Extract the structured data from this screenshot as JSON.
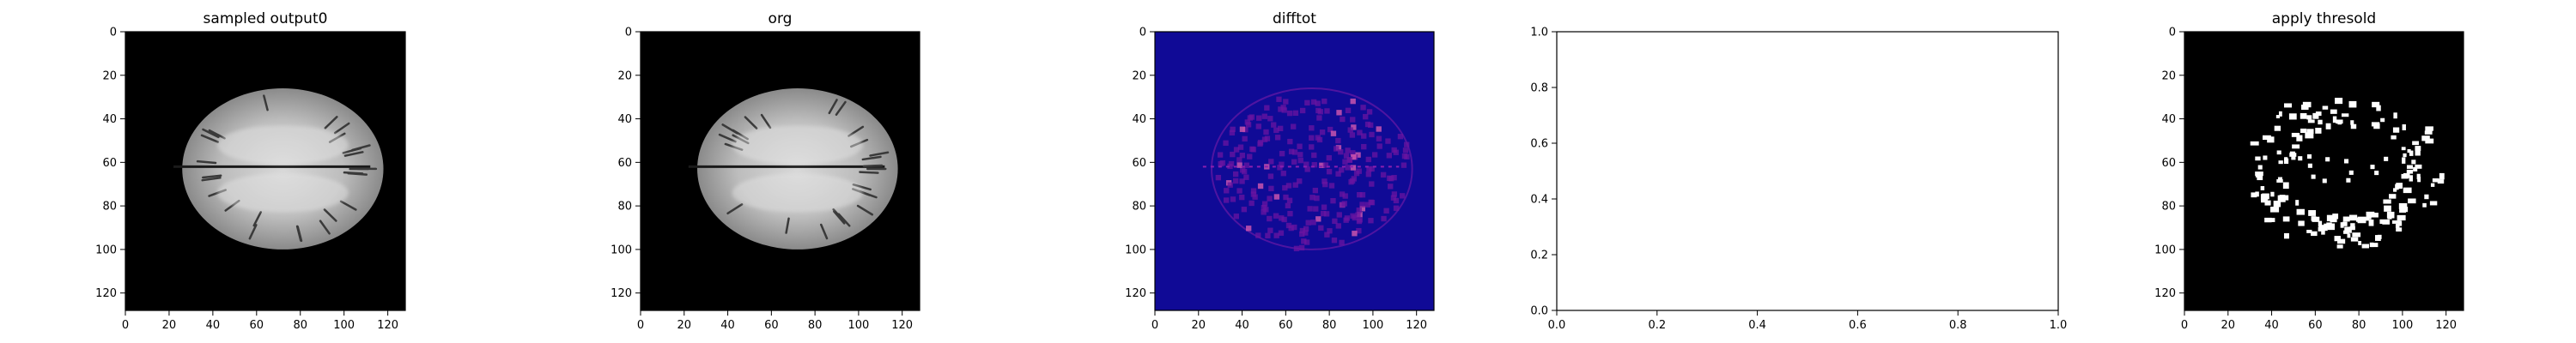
{
  "chart_data": [
    {
      "type": "heatmap",
      "title": "sampled output0",
      "colormap": "gray",
      "image": "brain-mri-axial-slice",
      "xlim": [
        0,
        128
      ],
      "ylim": [
        128,
        0
      ],
      "xticks": [
        0,
        20,
        40,
        60,
        80,
        100,
        120
      ],
      "yticks": [
        0,
        20,
        40,
        60,
        80,
        100,
        120
      ]
    },
    {
      "type": "heatmap",
      "title": "org",
      "colormap": "gray",
      "image": "brain-mri-axial-slice",
      "xlim": [
        0,
        128
      ],
      "ylim": [
        128,
        0
      ],
      "xticks": [
        0,
        20,
        40,
        60,
        80,
        100,
        120
      ],
      "yticks": [
        0,
        20,
        40,
        60,
        80,
        100,
        120
      ]
    },
    {
      "type": "heatmap",
      "title": "difftot",
      "colormap": "plasma",
      "image": "difference-map",
      "xlim": [
        0,
        128
      ],
      "ylim": [
        128,
        0
      ],
      "xticks": [
        0,
        20,
        40,
        60,
        80,
        100,
        120
      ],
      "yticks": [
        0,
        20,
        40,
        60,
        80,
        100,
        120
      ]
    },
    {
      "type": "line",
      "title": "",
      "empty": true,
      "xlim": [
        0,
        1
      ],
      "ylim": [
        0,
        1
      ],
      "xticks": [
        "0.0",
        "0.2",
        "0.4",
        "0.6",
        "0.8",
        "1.0"
      ],
      "yticks": [
        "0.0",
        "0.2",
        "0.4",
        "0.6",
        "0.8",
        "1.0"
      ]
    },
    {
      "type": "heatmap",
      "title": "apply thresold",
      "colormap": "binary",
      "image": "thresholded-mask",
      "xlim": [
        0,
        128
      ],
      "ylim": [
        128,
        0
      ],
      "xticks": [
        0,
        20,
        40,
        60,
        80,
        100,
        120
      ],
      "yticks": [
        0,
        20,
        40,
        60,
        80,
        100,
        120
      ]
    }
  ]
}
